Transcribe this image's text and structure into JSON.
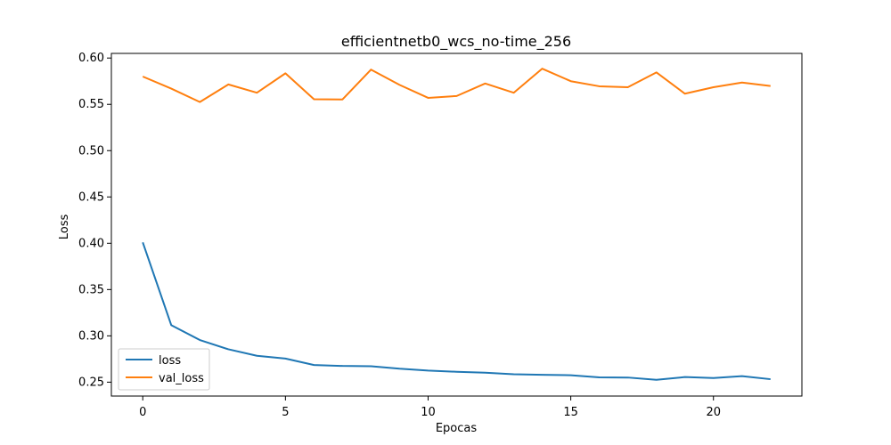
{
  "chart_data": {
    "type": "line",
    "title": "efficientnetb0_wcs_no-time_256",
    "xlabel": "Epocas",
    "ylabel": "Loss",
    "xlim": [
      -1.1,
      23.1
    ],
    "ylim": [
      0.235,
      0.605
    ],
    "grid": false,
    "legend_position": "lower-left",
    "x_ticks": [
      0,
      5,
      10,
      15,
      20
    ],
    "y_ticks": [
      0.25,
      0.3,
      0.35,
      0.4,
      0.45,
      0.5,
      0.55,
      0.6
    ],
    "x_tick_labels": [
      "0",
      "5",
      "10",
      "15",
      "20"
    ],
    "y_tick_labels": [
      "0.25",
      "0.30",
      "0.35",
      "0.40",
      "0.45",
      "0.50",
      "0.55",
      "0.60"
    ],
    "x": [
      0,
      1,
      2,
      3,
      4,
      5,
      6,
      7,
      8,
      9,
      10,
      11,
      12,
      13,
      14,
      15,
      16,
      17,
      18,
      19,
      20,
      21,
      22
    ],
    "series": [
      {
        "name": "loss",
        "color": "#1f77b4",
        "values": [
          0.401,
          0.3115,
          0.2955,
          0.2855,
          0.2785,
          0.2755,
          0.2685,
          0.2675,
          0.2672,
          0.2645,
          0.2625,
          0.2612,
          0.2602,
          0.2586,
          0.258,
          0.2575,
          0.2552,
          0.255,
          0.2525,
          0.2555,
          0.2545,
          0.2565,
          0.2532
        ]
      },
      {
        "name": "val_loss",
        "color": "#ff7f0e",
        "values": [
          0.58,
          0.567,
          0.5525,
          0.5715,
          0.5625,
          0.5835,
          0.5555,
          0.5553,
          0.5875,
          0.571,
          0.557,
          0.559,
          0.5725,
          0.5625,
          0.5885,
          0.575,
          0.5695,
          0.5685,
          0.5845,
          0.5615,
          0.5685,
          0.5735,
          0.5698
        ]
      }
    ]
  }
}
